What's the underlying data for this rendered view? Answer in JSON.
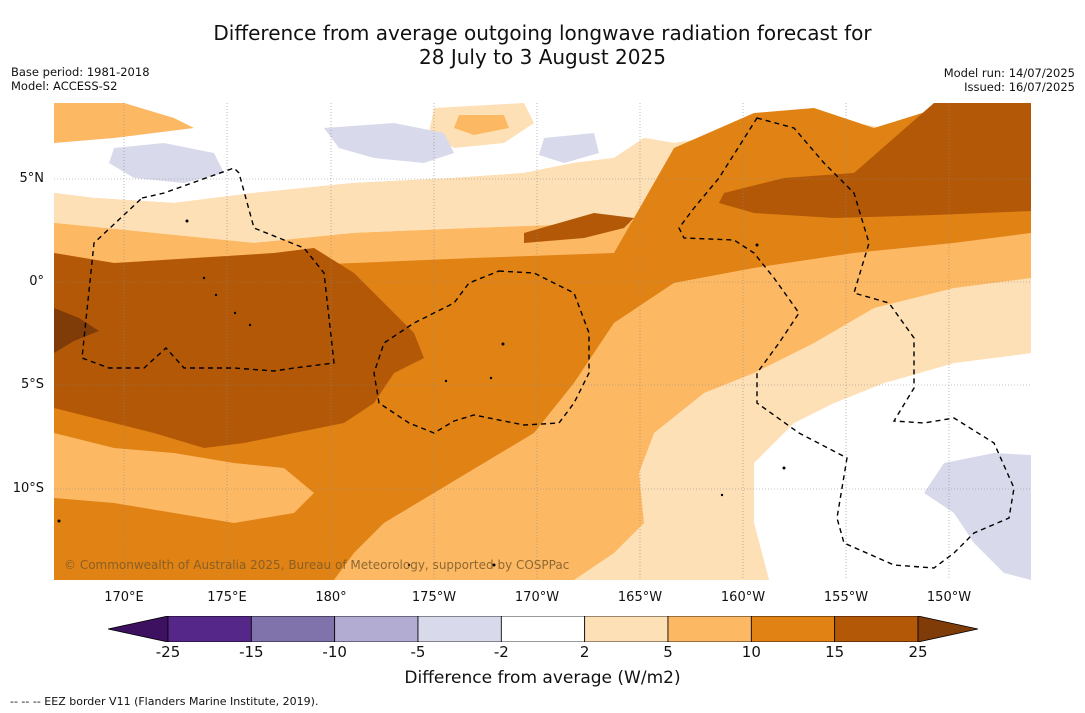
{
  "title_line1": "Difference from average outgoing longwave radiation forecast for",
  "title_line2": "28 July to 3 August 2025",
  "base_period": "Base period: 1981-2018",
  "model": "Model: ACCESS-S2",
  "model_run": "Model run: 14/07/2025",
  "issued": "Issued: 16/07/2025",
  "lat_labels": [
    "5°N",
    "0°",
    "5°S",
    "10°S"
  ],
  "lon_labels": [
    "170°E",
    "175°E",
    "180°",
    "175°W",
    "170°W",
    "165°W",
    "160°W",
    "155°W",
    "150°W"
  ],
  "credit": "© Commonwealth of Australia 2025, Bureau of Meteorology, supported by COSPPac",
  "legend": {
    "title": "Difference from average (W/m2)",
    "ticks": [
      "-25",
      "-15",
      "-10",
      "-5",
      "-2",
      "2",
      "5",
      "10",
      "15",
      "25"
    ],
    "colors": [
      "#3d1060",
      "#542788",
      "#8073ac",
      "#b2abd2",
      "#d8daeb",
      "#ffffff",
      "#fee0b6",
      "#fdb863",
      "#e08214",
      "#b35806",
      "#7f3b08"
    ]
  },
  "footnote": "--  --  -- EEZ border V11 (Flanders Marine Institute, 2019)."
}
